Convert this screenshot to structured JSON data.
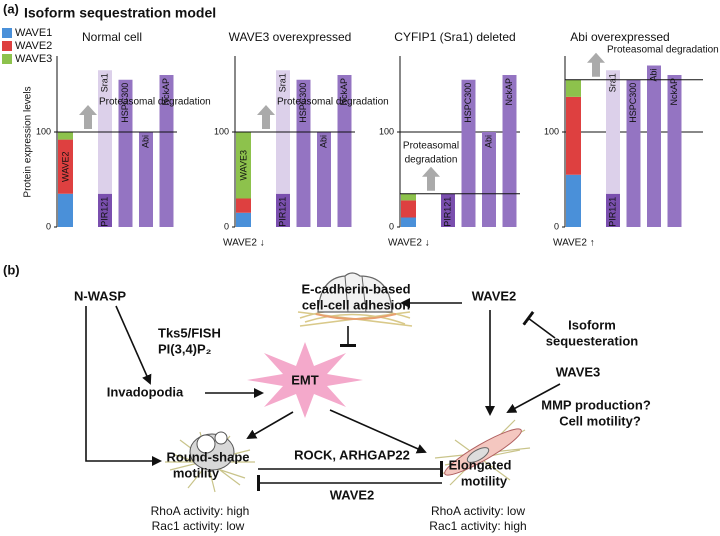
{
  "panel_a": {
    "label": "(a)",
    "title": "Isoform sequestration model"
  },
  "chart_data": [
    {
      "type": "stacked-bar",
      "title": "Normal cell",
      "y_label": "Protein expression levels",
      "ylim": [
        0,
        180
      ],
      "yticks": [
        0,
        100
      ],
      "grid": true,
      "series": [
        {
          "name": "WAVE1",
          "color": "#4a90d9",
          "values": [
            35
          ]
        },
        {
          "name": "WAVE2",
          "color": "#de4040",
          "values": [
            57
          ],
          "inside_label": true
        },
        {
          "name": "WAVE3",
          "color": "#8dc24c",
          "values": [
            8
          ]
        }
      ],
      "bars": [
        {
          "segments": [
            {
              "name": "PIR121",
              "value": 35,
              "color": "#7a4fae"
            },
            {
              "name": "Sra1",
              "value": 130,
              "color": "#dcd0ea"
            }
          ]
        },
        {
          "segments": [
            {
              "name": "HSPC300",
              "value": 155,
              "color": "#9474c2"
            }
          ]
        },
        {
          "segments": [
            {
              "name": "Abi",
              "value": 100,
              "color": "#9474c2"
            }
          ]
        },
        {
          "segments": [
            {
              "name": "NckAP",
              "value": 160,
              "color": "#9474c2"
            }
          ]
        }
      ],
      "degradation_level": 100,
      "annotation": [
        "Proteasomal degradation"
      ]
    },
    {
      "type": "stacked-bar",
      "title": "WAVE3 overexpressed",
      "ylim": [
        0,
        180
      ],
      "yticks": [
        0,
        100
      ],
      "grid": true,
      "series": [
        {
          "name": "WAVE1",
          "color": "#4a90d9",
          "values": [
            15
          ]
        },
        {
          "name": "WAVE2",
          "color": "#de4040",
          "values": [
            15
          ]
        },
        {
          "name": "WAVE3",
          "color": "#8dc24c",
          "values": [
            70
          ],
          "inside_label": true
        }
      ],
      "bars": [
        {
          "segments": [
            {
              "name": "PIR121",
              "value": 35,
              "color": "#7a4fae"
            },
            {
              "name": "Sra1",
              "value": 130,
              "color": "#dcd0ea"
            }
          ]
        },
        {
          "segments": [
            {
              "name": "HSPC300",
              "value": 155,
              "color": "#9474c2"
            }
          ]
        },
        {
          "segments": [
            {
              "name": "Abi",
              "value": 100,
              "color": "#9474c2"
            }
          ]
        },
        {
          "segments": [
            {
              "name": "NckAP",
              "value": 160,
              "color": "#9474c2"
            }
          ]
        }
      ],
      "degradation_level": 100,
      "annotation": [
        "Proteasomal degradation"
      ],
      "note": "WAVE2 ↓"
    },
    {
      "type": "stacked-bar",
      "title": "CYFIP1 (Sra1) deleted",
      "ylim": [
        0,
        180
      ],
      "yticks": [
        0,
        100
      ],
      "grid": true,
      "series": [
        {
          "name": "WAVE1",
          "color": "#4a90d9",
          "values": [
            10
          ]
        },
        {
          "name": "WAVE2",
          "color": "#de4040",
          "values": [
            18
          ]
        },
        {
          "name": "WAVE3",
          "color": "#8dc24c",
          "values": [
            7
          ]
        }
      ],
      "bars": [
        {
          "segments": [
            {
              "name": "PIR121",
              "value": 35,
              "color": "#7a4fae"
            }
          ]
        },
        {
          "segments": [
            {
              "name": "HSPC300",
              "value": 155,
              "color": "#9474c2"
            }
          ]
        },
        {
          "segments": [
            {
              "name": "Abi",
              "value": 100,
              "color": "#9474c2"
            }
          ]
        },
        {
          "segments": [
            {
              "name": "NckAP",
              "value": 160,
              "color": "#9474c2"
            }
          ]
        }
      ],
      "degradation_level": 35,
      "annotation": [
        "Proteasomal",
        "degradation"
      ],
      "note": "WAVE2 ↓"
    },
    {
      "type": "stacked-bar",
      "title": "Abi overexpressed",
      "ylim": [
        0,
        180
      ],
      "yticks": [
        0,
        100
      ],
      "grid": true,
      "series": [
        {
          "name": "WAVE1",
          "color": "#4a90d9",
          "values": [
            55
          ]
        },
        {
          "name": "WAVE2",
          "color": "#de4040",
          "values": [
            82
          ]
        },
        {
          "name": "WAVE3",
          "color": "#8dc24c",
          "values": [
            18
          ]
        }
      ],
      "bars": [
        {
          "segments": [
            {
              "name": "PIR121",
              "value": 35,
              "color": "#7a4fae"
            },
            {
              "name": "Sra1",
              "value": 130,
              "color": "#dcd0ea"
            }
          ]
        },
        {
          "segments": [
            {
              "name": "HSPC300",
              "value": 155,
              "color": "#9474c2"
            }
          ]
        },
        {
          "segments": [
            {
              "name": "Abi",
              "value": 170,
              "color": "#9474c2"
            }
          ]
        },
        {
          "segments": [
            {
              "name": "NckAP",
              "value": 160,
              "color": "#9474c2"
            }
          ]
        }
      ],
      "degradation_level": 155,
      "annotation": [
        "Proteasomal degradation"
      ],
      "note": "WAVE2 ↑"
    }
  ],
  "panel_b": {
    "label": "(b)",
    "n_wasp": "N-WASP",
    "tks": [
      "Tks5/FISH",
      "PI(3,4)P₂"
    ],
    "invadopodia": "Invadopodia",
    "ecadherin": [
      "E-cadherin-based",
      "cell-cell adhesion"
    ],
    "wave2_top": "WAVE2",
    "sequestration": [
      "Isoform",
      "sequesteration"
    ],
    "wave3": "WAVE3",
    "mmp": [
      "MMP production?",
      "Cell motility?"
    ],
    "emt": "EMT",
    "round": [
      "Round-shape",
      "motility"
    ],
    "elongated": [
      "Elongated",
      "motility"
    ],
    "rock": "ROCK, ARHGAP22",
    "wave2_bottom": "WAVE2",
    "round_activity": [
      "RhoA activity: high",
      "Rac1 activity: low"
    ],
    "elongated_activity": [
      "RhoA activity: low",
      "Rac1 activity: high"
    ]
  }
}
